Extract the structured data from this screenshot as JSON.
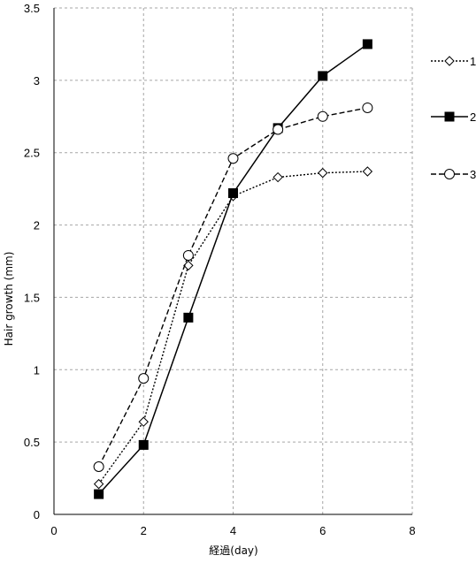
{
  "chart_data": {
    "type": "line",
    "title": "",
    "xlabel": "経過(day)",
    "ylabel": "Hair growth (mm)",
    "xlim": [
      0,
      8
    ],
    "ylim": [
      0,
      3.5
    ],
    "xticks": [
      0,
      2,
      4,
      6,
      8
    ],
    "yticks": [
      0,
      0.5,
      1,
      1.5,
      2,
      2.5,
      3,
      3.5
    ],
    "xtick_labels": [
      "0",
      "2",
      "4",
      "6",
      "8"
    ],
    "ytick_labels": [
      "0",
      "0.5",
      "1",
      "1.5",
      "2",
      "2.5",
      "3",
      "3.5"
    ],
    "grid": "dashed",
    "legend_position": "right",
    "series": [
      {
        "name": "1",
        "line": "dotted",
        "marker": "diamond-open",
        "x": [
          1,
          2,
          3,
          4,
          5,
          6,
          7
        ],
        "values": [
          0.21,
          0.64,
          1.72,
          2.2,
          2.33,
          2.36,
          2.37
        ]
      },
      {
        "name": "2",
        "line": "solid",
        "marker": "square-filled",
        "x": [
          1,
          2,
          3,
          4,
          5,
          6,
          7
        ],
        "values": [
          0.14,
          0.48,
          1.36,
          2.22,
          2.67,
          3.03,
          3.25
        ]
      },
      {
        "name": "3",
        "line": "dashed",
        "marker": "circle-open",
        "x": [
          1,
          2,
          3,
          4,
          5,
          6,
          7
        ],
        "values": [
          0.33,
          0.94,
          1.79,
          2.46,
          2.66,
          2.75,
          2.81
        ]
      }
    ]
  }
}
